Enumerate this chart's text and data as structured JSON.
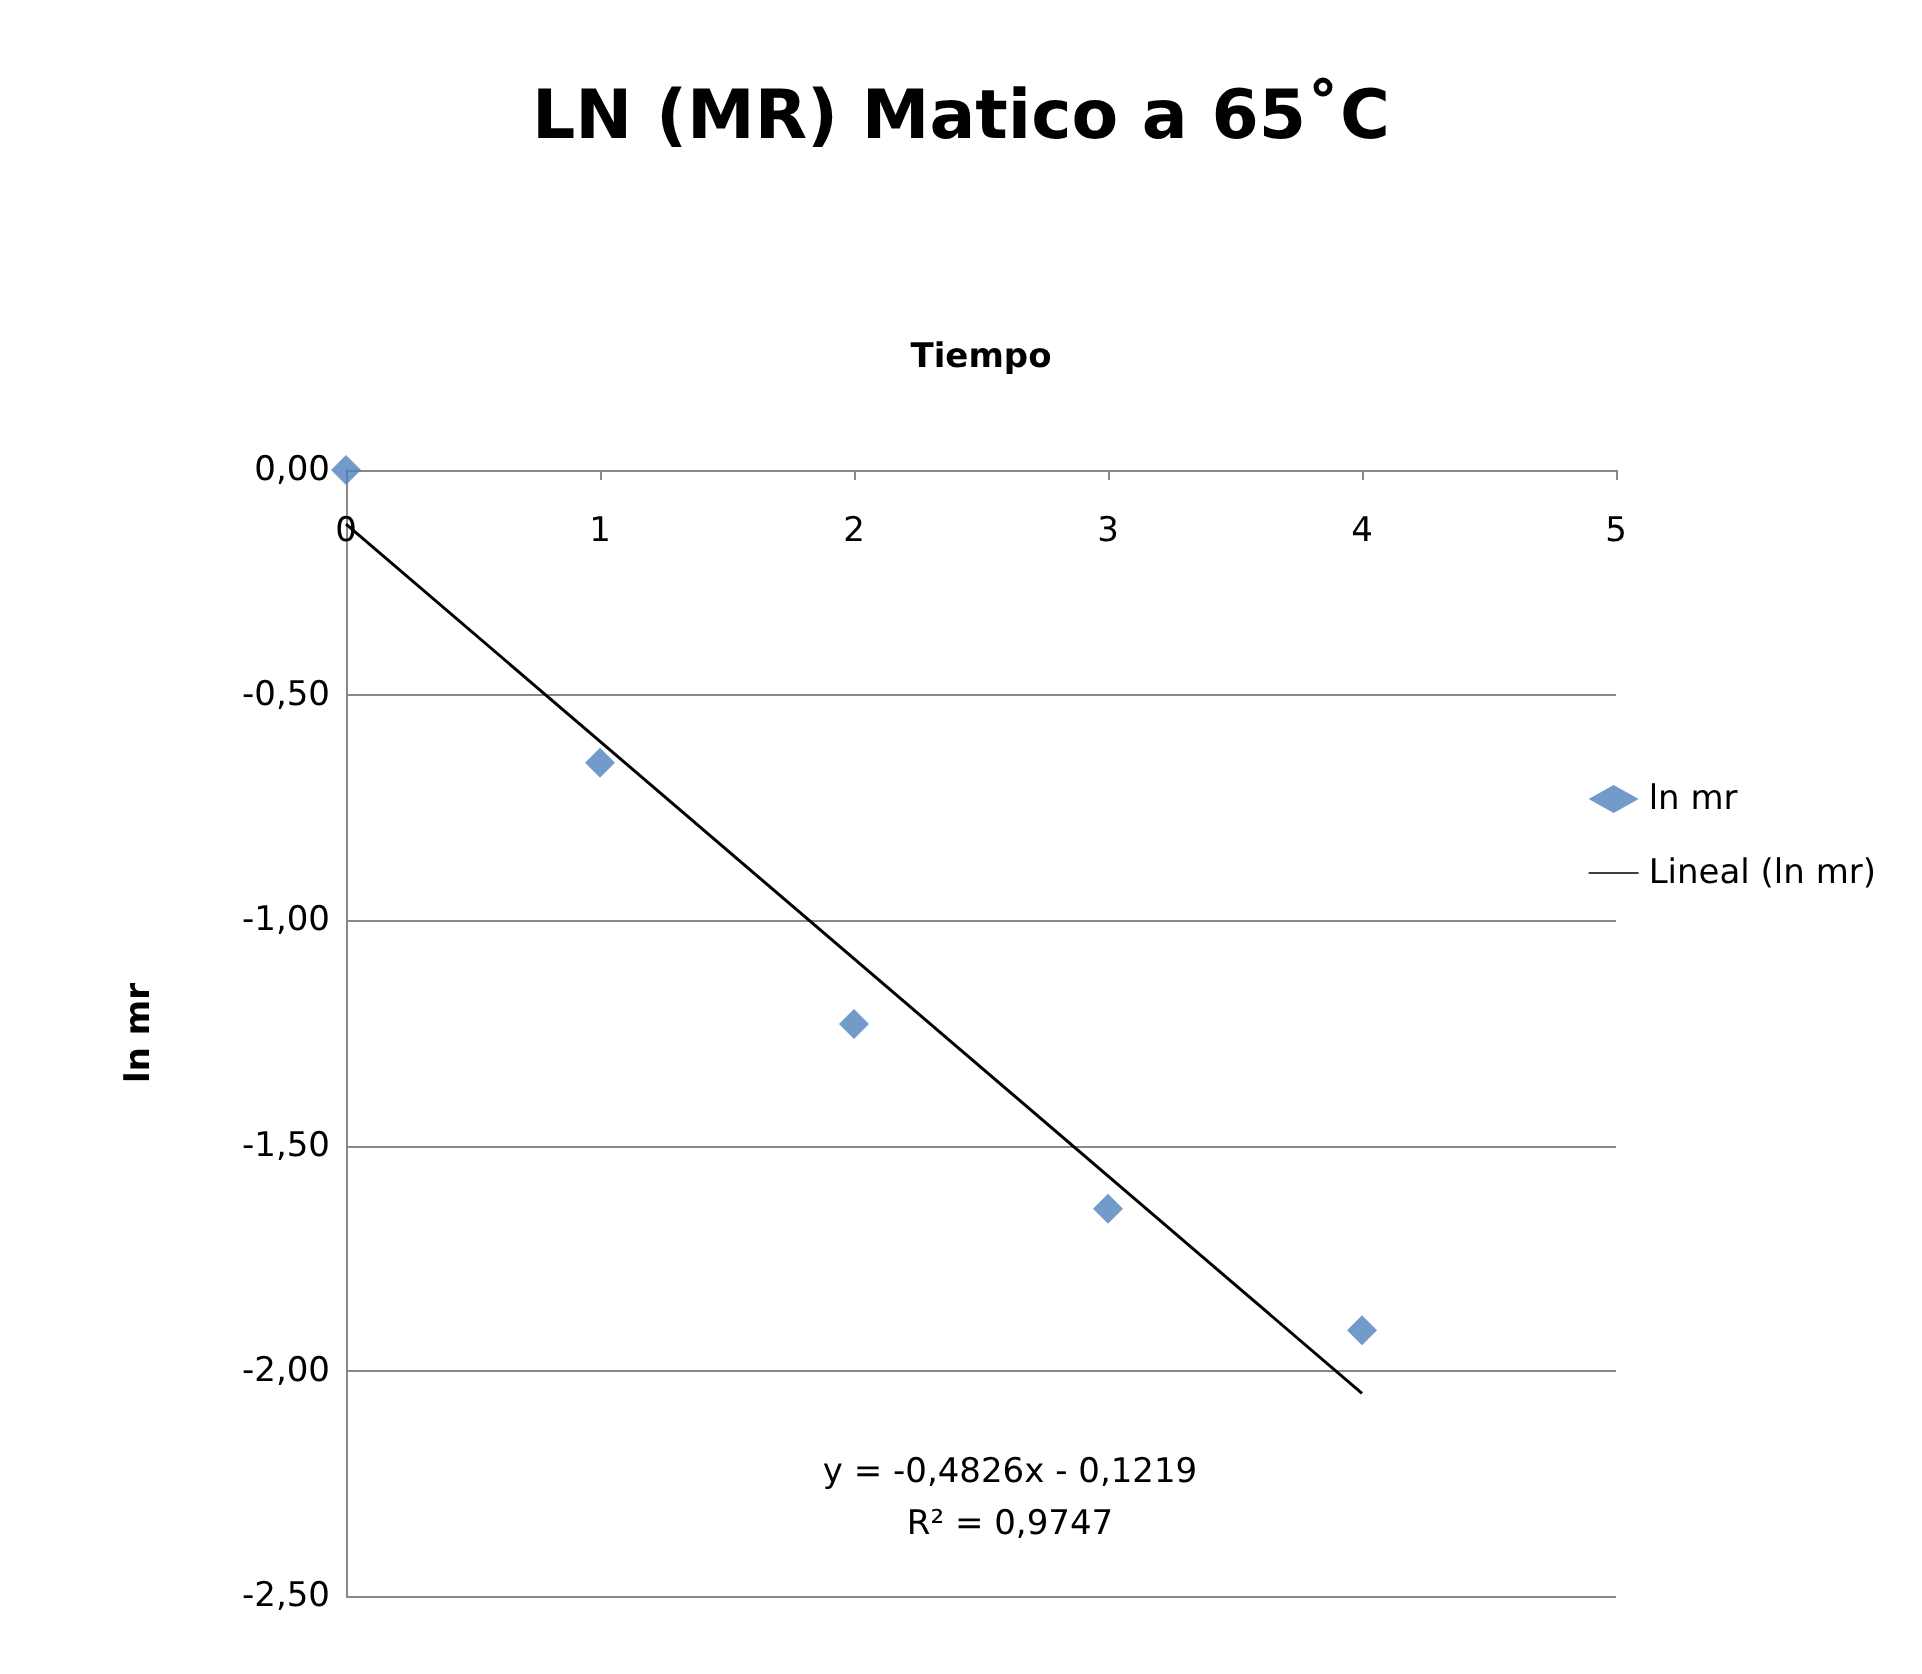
{
  "chart_data": {
    "type": "scatter",
    "title": "LN (MR) Matico a 65˚C",
    "xlabel": "Tiempo",
    "ylabel": "ln mr",
    "x": [
      0,
      1,
      2,
      3,
      4
    ],
    "series": [
      {
        "name": "ln mr",
        "color": "#4f81bd",
        "marker": "diamond",
        "values": [
          0,
          -0.65,
          -1.23,
          -1.64,
          -1.91
        ]
      },
      {
        "name": "Lineal (ln mr)",
        "type": "line",
        "color": "#000000",
        "marker": "none",
        "x": [
          0,
          4
        ],
        "values": [
          -0.12,
          -2.05
        ]
      }
    ],
    "xlim": [
      0,
      5
    ],
    "xticks": [
      0,
      1,
      2,
      3,
      4,
      5
    ],
    "ylim": [
      -2.5,
      0
    ],
    "yticks": [
      {
        "value": 0,
        "label": "0,00"
      },
      {
        "value": -0.5,
        "label": "-0,50"
      },
      {
        "value": -1,
        "label": "-1,00"
      },
      {
        "value": -1.5,
        "label": "-1,50"
      },
      {
        "value": -2,
        "label": "-2,00"
      },
      {
        "value": -2.5,
        "label": "-2,50"
      }
    ],
    "annotations": [
      "y = -0,4826x - 0,1219",
      "R² = 0,9747"
    ],
    "grid": "y",
    "legend": "right"
  }
}
